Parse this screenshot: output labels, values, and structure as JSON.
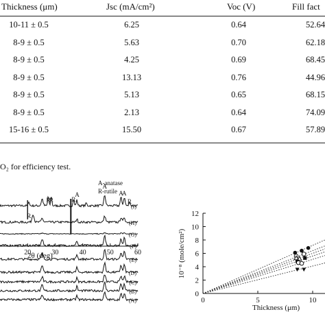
{
  "table": {
    "headers": {
      "thickness": "Thickness (μm)",
      "jsc": "Jsc (mA/cm²)",
      "voc": "Voc (V)",
      "ff": "Fill fact"
    },
    "rows": [
      {
        "thickness": "10-11 ± 0.5",
        "jsc": "6.25",
        "voc": "0.64",
        "ff": "52.64"
      },
      {
        "thickness": "8-9 ± 0.5",
        "jsc": "5.63",
        "voc": "0.70",
        "ff": "62.18"
      },
      {
        "thickness": "8-9 ± 0.5",
        "jsc": "4.25",
        "voc": "0.69",
        "ff": "68.45"
      },
      {
        "thickness": "8-9 ± 0.5",
        "jsc": "13.13",
        "voc": "0.76",
        "ff": "44.96"
      },
      {
        "thickness": "8-9 ± 0.5",
        "jsc": "5.13",
        "voc": "0.65",
        "ff": "68.15"
      },
      {
        "thickness": "8-9 ± 0.5",
        "jsc": "2.13",
        "voc": "0.64",
        "ff": "74.09"
      },
      {
        "thickness": "15-16 ± 0.5",
        "jsc": "15.50",
        "voc": "0.67",
        "ff": "57.89"
      }
    ],
    "footnote": "O₂ for efficiency test."
  },
  "chart_data": [
    {
      "type": "line",
      "xlabel": "2θ (deg)",
      "xticks": [
        "20",
        "30",
        "40",
        "50",
        "60"
      ],
      "xlim": [
        10,
        60
      ],
      "legend_lines": [
        "A-anatase",
        "R-rutile"
      ],
      "peak_labels": [
        {
          "label": "R",
          "x": 20.5
        },
        {
          "label": "R",
          "x": 27.5
        },
        {
          "label": "R",
          "x": 28.6
        },
        {
          "label": "A",
          "x": 38.0
        },
        {
          "label": "R",
          "x": 36.7
        },
        {
          "label": "A",
          "x": 48.0
        },
        {
          "label": "A",
          "x": 53.9
        },
        {
          "label": "A",
          "x": 55.1
        },
        {
          "label": "R",
          "x": 57.0
        }
      ],
      "series": [
        {
          "name": "(I)"
        },
        {
          "name": "(H)"
        },
        {
          "name": "(G)"
        },
        {
          "name": "(F)"
        },
        {
          "name": "(E)"
        },
        {
          "name": "(D)"
        },
        {
          "name": "(C)"
        },
        {
          "name": "(B)"
        },
        {
          "name": "(A)"
        }
      ]
    },
    {
      "type": "scatter",
      "xlabel": "Thickness (μm)",
      "ylabel": "10⁻⁸ (mole/cm²)",
      "xlim": [
        0,
        12
      ],
      "ylim": [
        0,
        12
      ],
      "xticks": [
        0,
        5,
        10
      ],
      "yticks": [
        0,
        2,
        4,
        6,
        8,
        10,
        12
      ],
      "grid": false,
      "series": [
        {
          "marker": "circle-filled",
          "points": [
            [
              8.4,
              6.1
            ],
            [
              9.0,
              6.4
            ],
            [
              9.6,
              6.8
            ]
          ],
          "slope": 0.72
        },
        {
          "marker": "circle-open",
          "points": [
            [
              8.5,
              5.6
            ],
            [
              9.2,
              5.9
            ]
          ],
          "slope": 0.64
        },
        {
          "marker": "triangle-up-open",
          "points": [
            [
              8.5,
              5.3
            ],
            [
              8.8,
              5.2
            ]
          ],
          "slope": 0.6
        },
        {
          "marker": "square-filled",
          "points": [
            [
              8.6,
              4.8
            ],
            [
              9.3,
              5.3
            ]
          ],
          "slope": 0.56
        },
        {
          "marker": "circle-open",
          "points": [
            [
              8.7,
              4.6
            ],
            [
              9.0,
              4.5
            ]
          ],
          "slope": 0.51
        },
        {
          "marker": "triangle-down-filled",
          "points": [
            [
              8.6,
              3.6
            ],
            [
              9.2,
              3.6
            ]
          ],
          "slope": 0.41
        }
      ]
    }
  ]
}
